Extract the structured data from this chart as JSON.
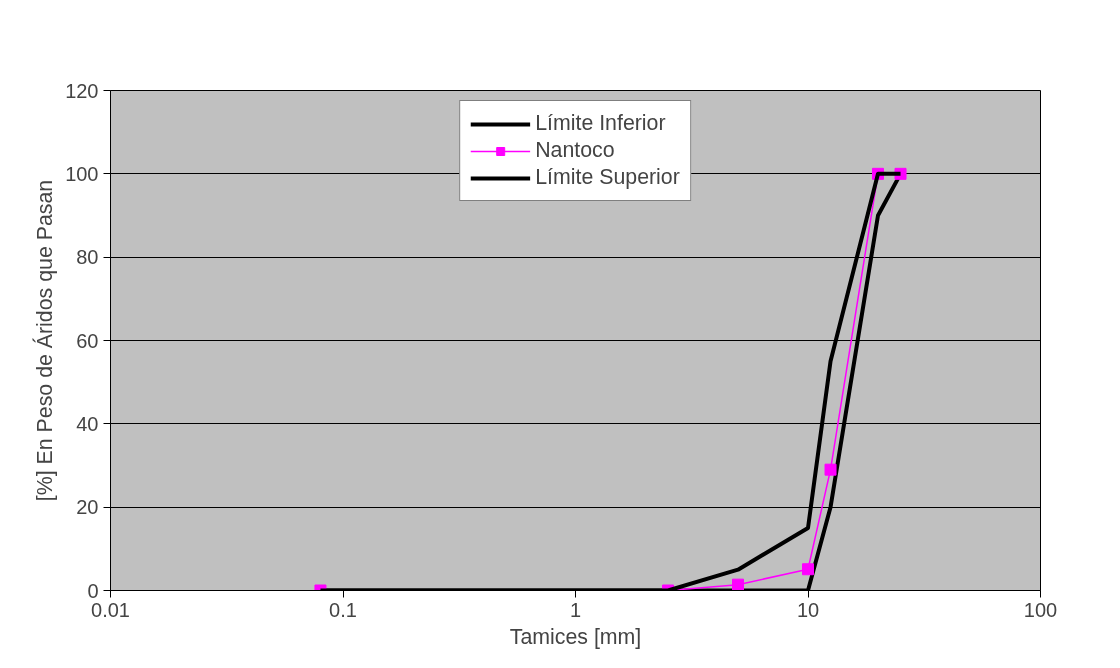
{
  "chart_data": {
    "type": "line",
    "xlabel": "Tamices [mm]",
    "ylabel": "[%] En Peso de Áridos que Pasan",
    "x": [
      0.08,
      2.5,
      5,
      10,
      12.5,
      20,
      25
    ],
    "series": [
      {
        "name": "Límite Inferior",
        "color": "#000000",
        "marker": "none",
        "values": [
          0,
          0,
          0,
          0,
          20,
          90,
          100
        ]
      },
      {
        "name": "Nantoco",
        "color": "#ff00ff",
        "marker": "square",
        "values": [
          0,
          0,
          1.4,
          5.1,
          29,
          100,
          100
        ]
      },
      {
        "name": "Límite Superior",
        "color": "#000000",
        "marker": "none",
        "values": [
          0,
          0,
          5,
          15,
          55,
          100,
          100
        ]
      }
    ],
    "log": "x",
    "xlim": [
      0.01,
      100
    ],
    "xticks": [
      0.01,
      0.1,
      1,
      10,
      100
    ],
    "ylim": [
      0,
      120
    ],
    "yticks": [
      0,
      20,
      40,
      60,
      80,
      100,
      120
    ],
    "grid": "y",
    "legend": "top"
  }
}
